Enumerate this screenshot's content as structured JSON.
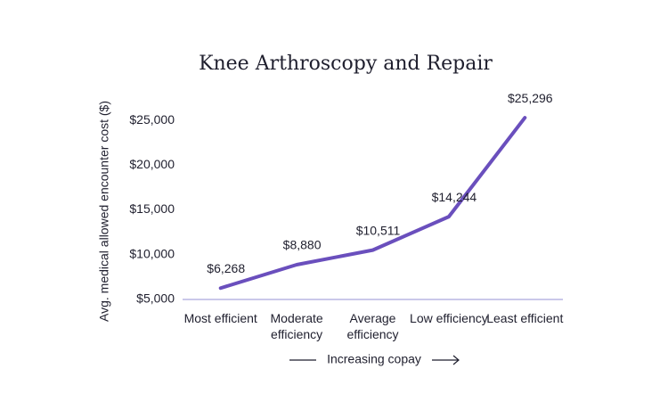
{
  "chart_data": {
    "type": "line",
    "title": "Knee Arthroscopy and Repair",
    "y_label": "Avg. medical allowed encounter cost ($)",
    "x_label": "Increasing copay",
    "categories": [
      "Most efficient",
      "Moderate efficiency",
      "Average efficiency",
      "Low efficiency",
      "Least efficient"
    ],
    "values": [
      6268,
      8880,
      10511,
      14244,
      25296
    ],
    "value_labels": [
      "$6,268",
      "$8,880",
      "$10,511",
      "$14,244",
      "$25,296"
    ],
    "color": "#6a4fbd",
    "ylim": [
      5000,
      26000
    ],
    "yticks": [
      {
        "value": 5000,
        "label": "$5,000"
      },
      {
        "value": 10000,
        "label": "$10,000"
      },
      {
        "value": 15000,
        "label": "$15,000"
      },
      {
        "value": 20000,
        "label": "$20,000"
      },
      {
        "value": 25000,
        "label": "$25,000"
      }
    ],
    "grid": false
  }
}
